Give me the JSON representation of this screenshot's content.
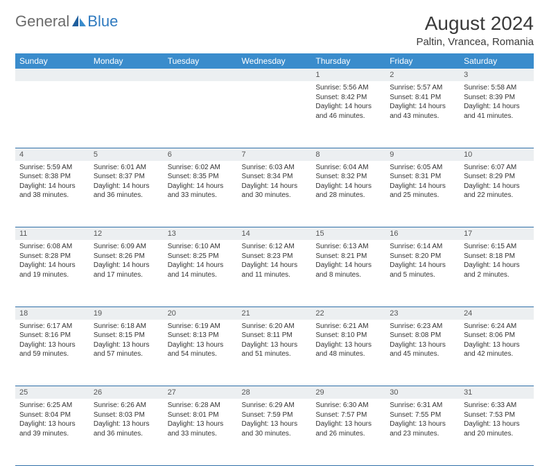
{
  "logo": {
    "word1": "General",
    "word2": "Blue"
  },
  "title": "August 2024",
  "location": "Paltin, Vrancea, Romania",
  "colors": {
    "header_bg": "#3a8ccc",
    "header_text": "#ffffff",
    "daynum_bg": "#eceff1",
    "rule": "#2f6fa8",
    "logo_gray": "#6b6b6b",
    "logo_blue": "#2f7abf"
  },
  "weekdays": [
    "Sunday",
    "Monday",
    "Tuesday",
    "Wednesday",
    "Thursday",
    "Friday",
    "Saturday"
  ],
  "weeks": [
    [
      null,
      null,
      null,
      null,
      {
        "n": "1",
        "sr": "Sunrise: 5:56 AM",
        "ss": "Sunset: 8:42 PM",
        "dl1": "Daylight: 14 hours",
        "dl2": "and 46 minutes."
      },
      {
        "n": "2",
        "sr": "Sunrise: 5:57 AM",
        "ss": "Sunset: 8:41 PM",
        "dl1": "Daylight: 14 hours",
        "dl2": "and 43 minutes."
      },
      {
        "n": "3",
        "sr": "Sunrise: 5:58 AM",
        "ss": "Sunset: 8:39 PM",
        "dl1": "Daylight: 14 hours",
        "dl2": "and 41 minutes."
      }
    ],
    [
      {
        "n": "4",
        "sr": "Sunrise: 5:59 AM",
        "ss": "Sunset: 8:38 PM",
        "dl1": "Daylight: 14 hours",
        "dl2": "and 38 minutes."
      },
      {
        "n": "5",
        "sr": "Sunrise: 6:01 AM",
        "ss": "Sunset: 8:37 PM",
        "dl1": "Daylight: 14 hours",
        "dl2": "and 36 minutes."
      },
      {
        "n": "6",
        "sr": "Sunrise: 6:02 AM",
        "ss": "Sunset: 8:35 PM",
        "dl1": "Daylight: 14 hours",
        "dl2": "and 33 minutes."
      },
      {
        "n": "7",
        "sr": "Sunrise: 6:03 AM",
        "ss": "Sunset: 8:34 PM",
        "dl1": "Daylight: 14 hours",
        "dl2": "and 30 minutes."
      },
      {
        "n": "8",
        "sr": "Sunrise: 6:04 AM",
        "ss": "Sunset: 8:32 PM",
        "dl1": "Daylight: 14 hours",
        "dl2": "and 28 minutes."
      },
      {
        "n": "9",
        "sr": "Sunrise: 6:05 AM",
        "ss": "Sunset: 8:31 PM",
        "dl1": "Daylight: 14 hours",
        "dl2": "and 25 minutes."
      },
      {
        "n": "10",
        "sr": "Sunrise: 6:07 AM",
        "ss": "Sunset: 8:29 PM",
        "dl1": "Daylight: 14 hours",
        "dl2": "and 22 minutes."
      }
    ],
    [
      {
        "n": "11",
        "sr": "Sunrise: 6:08 AM",
        "ss": "Sunset: 8:28 PM",
        "dl1": "Daylight: 14 hours",
        "dl2": "and 19 minutes."
      },
      {
        "n": "12",
        "sr": "Sunrise: 6:09 AM",
        "ss": "Sunset: 8:26 PM",
        "dl1": "Daylight: 14 hours",
        "dl2": "and 17 minutes."
      },
      {
        "n": "13",
        "sr": "Sunrise: 6:10 AM",
        "ss": "Sunset: 8:25 PM",
        "dl1": "Daylight: 14 hours",
        "dl2": "and 14 minutes."
      },
      {
        "n": "14",
        "sr": "Sunrise: 6:12 AM",
        "ss": "Sunset: 8:23 PM",
        "dl1": "Daylight: 14 hours",
        "dl2": "and 11 minutes."
      },
      {
        "n": "15",
        "sr": "Sunrise: 6:13 AM",
        "ss": "Sunset: 8:21 PM",
        "dl1": "Daylight: 14 hours",
        "dl2": "and 8 minutes."
      },
      {
        "n": "16",
        "sr": "Sunrise: 6:14 AM",
        "ss": "Sunset: 8:20 PM",
        "dl1": "Daylight: 14 hours",
        "dl2": "and 5 minutes."
      },
      {
        "n": "17",
        "sr": "Sunrise: 6:15 AM",
        "ss": "Sunset: 8:18 PM",
        "dl1": "Daylight: 14 hours",
        "dl2": "and 2 minutes."
      }
    ],
    [
      {
        "n": "18",
        "sr": "Sunrise: 6:17 AM",
        "ss": "Sunset: 8:16 PM",
        "dl1": "Daylight: 13 hours",
        "dl2": "and 59 minutes."
      },
      {
        "n": "19",
        "sr": "Sunrise: 6:18 AM",
        "ss": "Sunset: 8:15 PM",
        "dl1": "Daylight: 13 hours",
        "dl2": "and 57 minutes."
      },
      {
        "n": "20",
        "sr": "Sunrise: 6:19 AM",
        "ss": "Sunset: 8:13 PM",
        "dl1": "Daylight: 13 hours",
        "dl2": "and 54 minutes."
      },
      {
        "n": "21",
        "sr": "Sunrise: 6:20 AM",
        "ss": "Sunset: 8:11 PM",
        "dl1": "Daylight: 13 hours",
        "dl2": "and 51 minutes."
      },
      {
        "n": "22",
        "sr": "Sunrise: 6:21 AM",
        "ss": "Sunset: 8:10 PM",
        "dl1": "Daylight: 13 hours",
        "dl2": "and 48 minutes."
      },
      {
        "n": "23",
        "sr": "Sunrise: 6:23 AM",
        "ss": "Sunset: 8:08 PM",
        "dl1": "Daylight: 13 hours",
        "dl2": "and 45 minutes."
      },
      {
        "n": "24",
        "sr": "Sunrise: 6:24 AM",
        "ss": "Sunset: 8:06 PM",
        "dl1": "Daylight: 13 hours",
        "dl2": "and 42 minutes."
      }
    ],
    [
      {
        "n": "25",
        "sr": "Sunrise: 6:25 AM",
        "ss": "Sunset: 8:04 PM",
        "dl1": "Daylight: 13 hours",
        "dl2": "and 39 minutes."
      },
      {
        "n": "26",
        "sr": "Sunrise: 6:26 AM",
        "ss": "Sunset: 8:03 PM",
        "dl1": "Daylight: 13 hours",
        "dl2": "and 36 minutes."
      },
      {
        "n": "27",
        "sr": "Sunrise: 6:28 AM",
        "ss": "Sunset: 8:01 PM",
        "dl1": "Daylight: 13 hours",
        "dl2": "and 33 minutes."
      },
      {
        "n": "28",
        "sr": "Sunrise: 6:29 AM",
        "ss": "Sunset: 7:59 PM",
        "dl1": "Daylight: 13 hours",
        "dl2": "and 30 minutes."
      },
      {
        "n": "29",
        "sr": "Sunrise: 6:30 AM",
        "ss": "Sunset: 7:57 PM",
        "dl1": "Daylight: 13 hours",
        "dl2": "and 26 minutes."
      },
      {
        "n": "30",
        "sr": "Sunrise: 6:31 AM",
        "ss": "Sunset: 7:55 PM",
        "dl1": "Daylight: 13 hours",
        "dl2": "and 23 minutes."
      },
      {
        "n": "31",
        "sr": "Sunrise: 6:33 AM",
        "ss": "Sunset: 7:53 PM",
        "dl1": "Daylight: 13 hours",
        "dl2": "and 20 minutes."
      }
    ]
  ]
}
